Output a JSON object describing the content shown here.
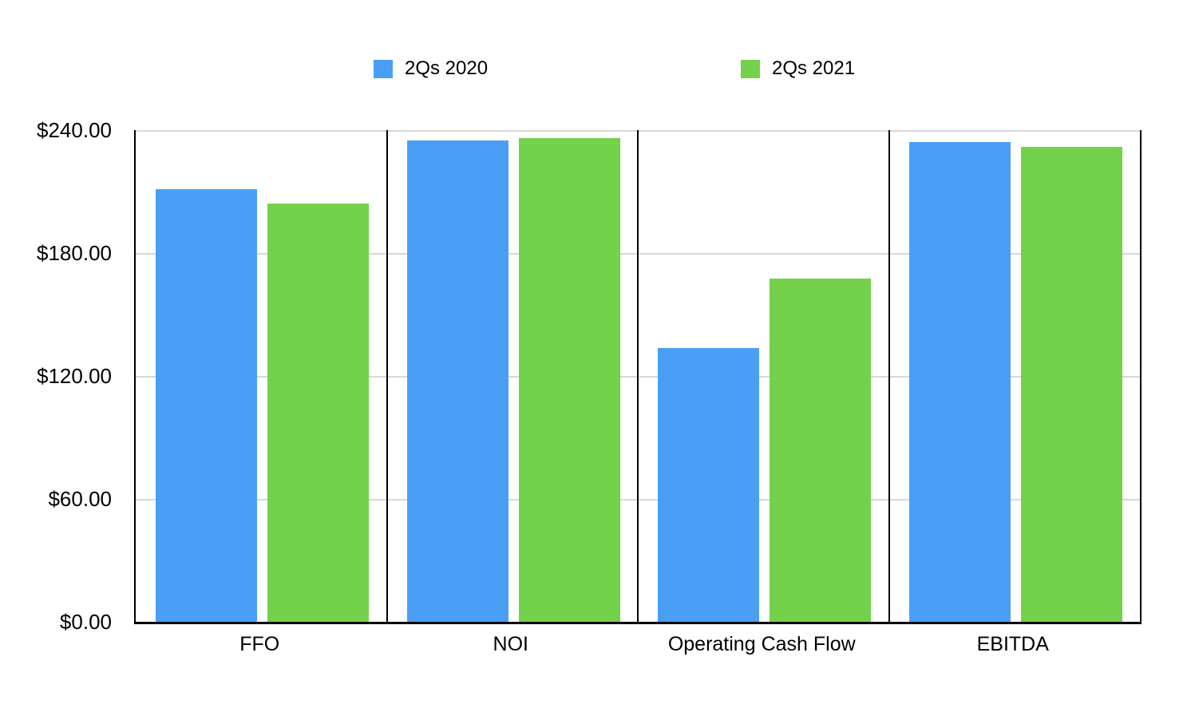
{
  "chart_data": {
    "type": "bar",
    "title": "",
    "xlabel": "",
    "ylabel": "",
    "categories": [
      "FFO",
      "NOI",
      "Operating Cash Flow",
      "EBITDA"
    ],
    "series": [
      {
        "name": "2Qs 2020",
        "color": "#4a9ff5",
        "values": [
          211,
          235,
          133.5,
          234
        ]
      },
      {
        "name": "2Qs 2021",
        "color": "#74d14c",
        "values": [
          204,
          236,
          167.5,
          232
        ]
      }
    ],
    "ylim": [
      0,
      240
    ],
    "yticks": [
      {
        "value": 0,
        "label": "$0.00"
      },
      {
        "value": 60,
        "label": "$60.00"
      },
      {
        "value": 120,
        "label": "$120.00"
      },
      {
        "value": 180,
        "label": "$180.00"
      },
      {
        "value": 240,
        "label": "$240.00"
      }
    ],
    "grid": "horizontal",
    "legend_position": "top",
    "panel_separators": true,
    "colors": {
      "axis": "#000000",
      "gridline": "#d8d8d8",
      "background": "#ffffff",
      "text": "#000000"
    }
  }
}
